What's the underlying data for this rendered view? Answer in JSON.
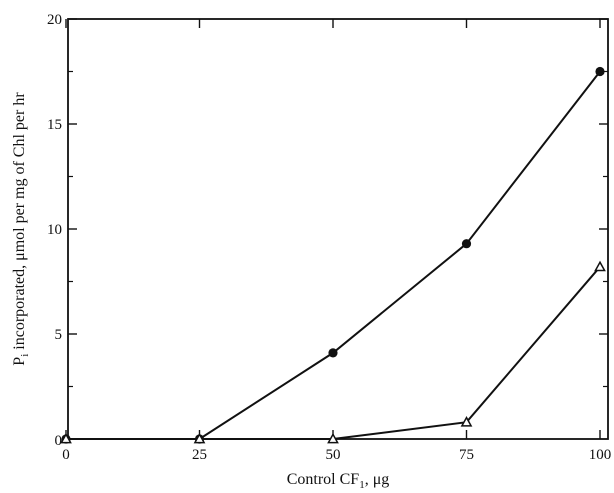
{
  "chart_data": {
    "type": "line",
    "xlabel_main": "Control CF",
    "xlabel_sub": "1",
    "xlabel_unit": ", μg",
    "ylabel_main": "P",
    "ylabel_sub": "i",
    "ylabel_rest": " incorporated, μmol per mg of Chl per hr",
    "xlim": [
      0,
      100
    ],
    "ylim": [
      0,
      20
    ],
    "x_ticks": [
      0,
      25,
      50,
      75,
      100
    ],
    "y_ticks": [
      5,
      10,
      15,
      20
    ],
    "grid": false,
    "series": [
      {
        "marker": "filled-circle",
        "x": [
          0,
          25,
          50,
          75,
          100
        ],
        "values": [
          0,
          0,
          4.1,
          9.3,
          17.5
        ]
      },
      {
        "marker": "open-triangle",
        "x": [
          0,
          25,
          50,
          75,
          100
        ],
        "values": [
          0,
          0,
          0,
          0.8,
          8.2
        ]
      }
    ]
  },
  "colors": {
    "ink": "#111111",
    "background": "#ffffff"
  }
}
